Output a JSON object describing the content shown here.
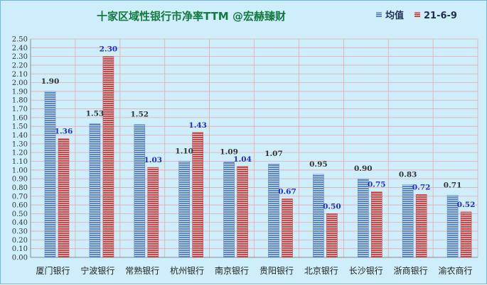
{
  "chart_data": {
    "type": "bar",
    "title": "十家区域性银行市净率TTM   @宏赫臻财",
    "categories": [
      "厦门银行",
      "宁波银行",
      "常熟银行",
      "杭州银行",
      "南京银行",
      "贵阳银行",
      "北京银行",
      "长沙银行",
      "浙商银行",
      "渝农商行"
    ],
    "series": [
      {
        "name": "均值",
        "values": [
          1.9,
          1.53,
          1.52,
          1.1,
          1.09,
          1.07,
          0.95,
          0.9,
          0.83,
          0.71
        ],
        "labels": [
          "1.90",
          "1.53",
          "1.52",
          "1.10",
          "1.09",
          "1.07",
          "0.95",
          "0.90",
          "0.83",
          "0.71"
        ],
        "color": "#5b86c5",
        "label_color": "#333333"
      },
      {
        "name": "21-6-9",
        "values": [
          1.36,
          2.3,
          1.03,
          1.43,
          1.04,
          0.67,
          0.5,
          0.75,
          0.72,
          0.52
        ],
        "labels": [
          "1.36",
          "2.30",
          "1.03",
          "1.43",
          "1.04",
          "0.67",
          "0.50",
          "0.75",
          "0.72",
          "0.52"
        ],
        "color": "#c9484a",
        "label_color": "#1c2fc9"
      }
    ],
    "ylim": [
      0,
      2.5
    ],
    "ytick_labels": [
      "0.00",
      "0.10",
      "0.20",
      "0.30",
      "0.40",
      "0.50",
      "0.60",
      "0.70",
      "0.80",
      "0.90",
      "1.00",
      "1.10",
      "1.20",
      "1.30",
      "1.40",
      "1.50",
      "1.60",
      "1.70",
      "1.80",
      "1.90",
      "2.00",
      "2.10",
      "2.20",
      "2.30",
      "2.40",
      "2.50"
    ],
    "grid": true,
    "legend_position": "top-right",
    "background_color": "#cfeefb"
  }
}
